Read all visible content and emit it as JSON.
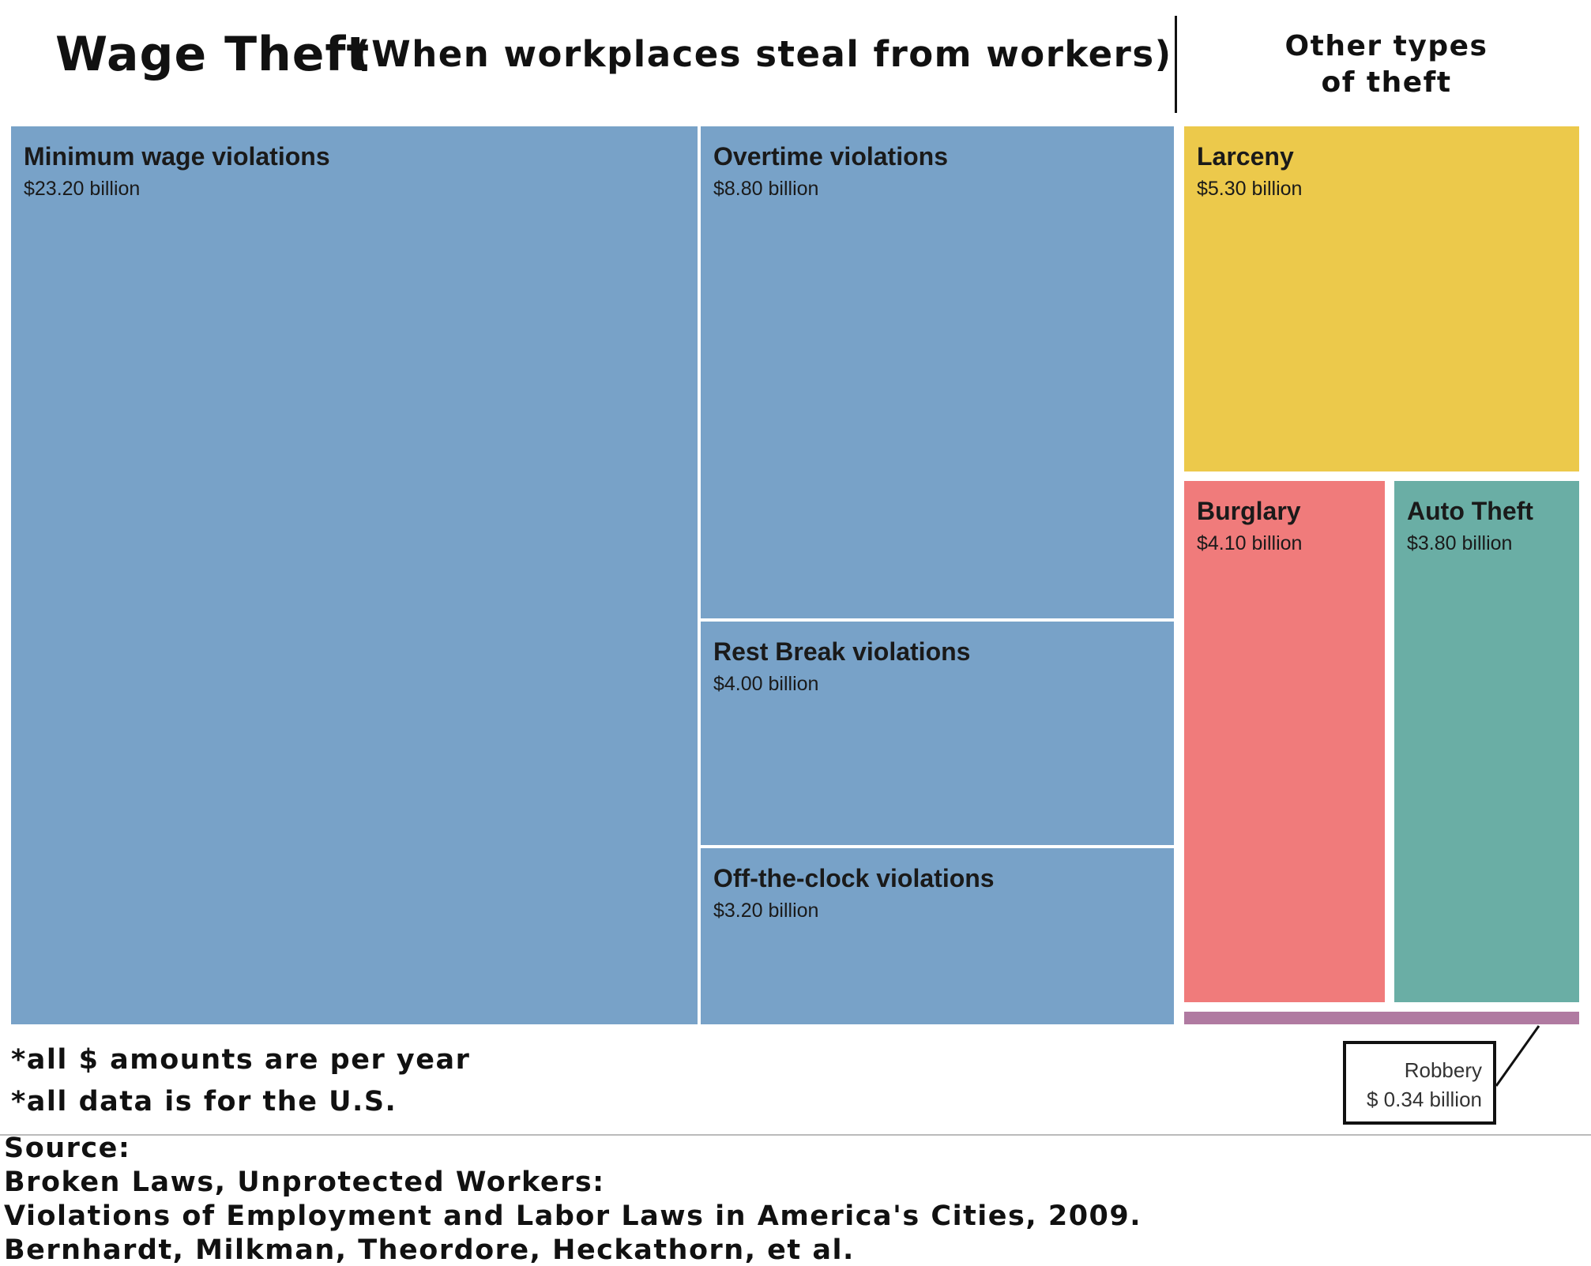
{
  "chart_data": {
    "type": "treemap",
    "title": "Wage Theft",
    "subtitle": "(When workplaces steal from workers)",
    "unit": "billion",
    "groups": [
      {
        "name": "",
        "items": [
          {
            "label": "Minimum wage violations",
            "value": 23.2,
            "value_text": "$23.20 billion",
            "color": "#78a2c8"
          },
          {
            "label": "Overtime violations",
            "value": 8.8,
            "value_text": "$8.80 billion",
            "color": "#78a2c8"
          },
          {
            "label": "Rest Break violations",
            "value": 4.0,
            "value_text": "$4.00 billion",
            "color": "#78a2c8"
          },
          {
            "label": "Off-the-clock violations",
            "value": 3.2,
            "value_text": "$3.20 billion",
            "color": "#78a2c8"
          }
        ]
      },
      {
        "name": "Other types of theft",
        "items": [
          {
            "label": "Larceny",
            "value": 5.3,
            "value_text": "$5.30 billion",
            "color": "#ecc94b"
          },
          {
            "label": "Burglary",
            "value": 4.1,
            "value_text": "$4.10 billion",
            "color": "#f07b7b"
          },
          {
            "label": "Auto Theft",
            "value": 3.8,
            "value_text": "$3.80 billion",
            "color": "#6aaea5"
          },
          {
            "label": "Robbery",
            "value": 0.34,
            "value_text": "$ 0.34 billion",
            "color": "#b07aa1"
          }
        ]
      }
    ]
  },
  "header": {
    "title": "Wage Theft",
    "subtitle": "(When workplaces steal from workers)",
    "other_line1": "Other types",
    "other_line2": "of theft"
  },
  "notes": {
    "note1": "*all $ amounts are per year",
    "note2": "*all data is for the U.S."
  },
  "source": {
    "line1": "Source:",
    "line2": "Broken Laws, Unprotected Workers:",
    "line3": "Violations of Employment and Labor Laws in America's Cities, 2009.",
    "line4": "Bernhardt, Milkman, Theordore, Heckathorn, et al."
  }
}
